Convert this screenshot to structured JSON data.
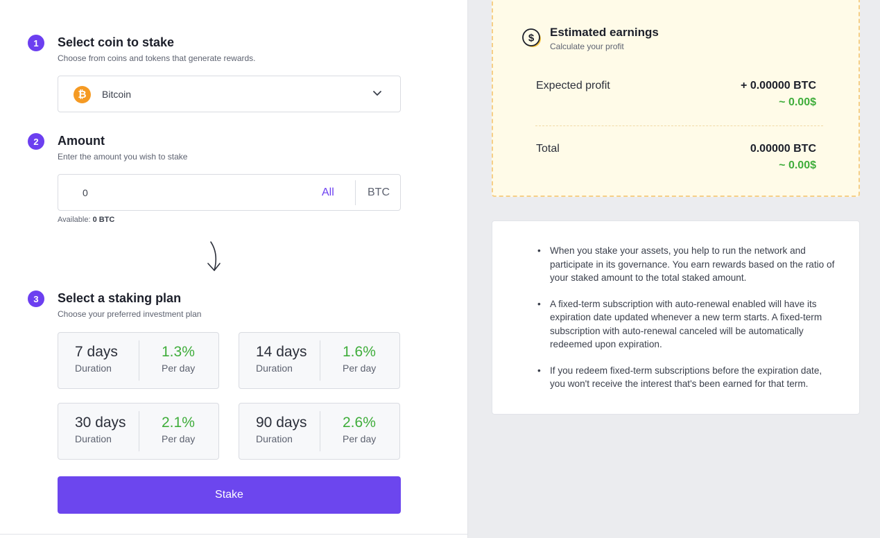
{
  "steps": [
    {
      "number": "1",
      "title": "Select coin to stake",
      "subtitle": "Choose from coins and tokens that generate rewards."
    },
    {
      "number": "2",
      "title": "Amount",
      "subtitle": "Enter the amount you wish to stake"
    },
    {
      "number": "3",
      "title": "Select a staking plan",
      "subtitle": "Choose your preferred investment plan"
    }
  ],
  "coin_select": {
    "selected": "Bitcoin",
    "icon_glyph": "₿",
    "icon": "bitcoin-icon",
    "icon_color": "#f59a23"
  },
  "amount": {
    "value": "0",
    "all_label": "All",
    "unit": "BTC",
    "available_label": "Available:",
    "available_value": "0 BTC"
  },
  "plans": [
    {
      "days": "7 days",
      "duration_label": "Duration",
      "rate": "1.3%",
      "per_label": "Per day"
    },
    {
      "days": "14 days",
      "duration_label": "Duration",
      "rate": "1.6%",
      "per_label": "Per day"
    },
    {
      "days": "30 days",
      "duration_label": "Duration",
      "rate": "2.1%",
      "per_label": "Per day"
    },
    {
      "days": "90 days",
      "duration_label": "Duration",
      "rate": "2.6%",
      "per_label": "Per day"
    }
  ],
  "stake_button": "Stake",
  "earnings": {
    "title": "Estimated earnings",
    "subtitle": "Calculate your profit",
    "expected_label": "Expected profit",
    "expected_btc": "+ 0.00000 BTC",
    "expected_usd": "~ 0.00$",
    "total_label": "Total",
    "total_btc": "0.00000 BTC",
    "total_usd": "~ 0.00$"
  },
  "info": [
    "When you stake your assets, you help to run the network and participate in its governance. You earn rewards based on the ratio of your staked amount to the total staked amount.",
    "A fixed-term subscription with auto-renewal enabled will have its expiration date updated whenever a new term starts. A fixed-term subscription with auto-renewal canceled will be automatically redeemed upon expiration.",
    "If you redeem fixed-term subscriptions before the expiration date, you won't receive the interest that's been earned for that term."
  ],
  "colors": {
    "accent": "#6c3ff0",
    "button": "#6c46ee",
    "positive": "#3fad3b",
    "earnings_bg": "#fffbe8",
    "earnings_border": "#f6cf86"
  }
}
